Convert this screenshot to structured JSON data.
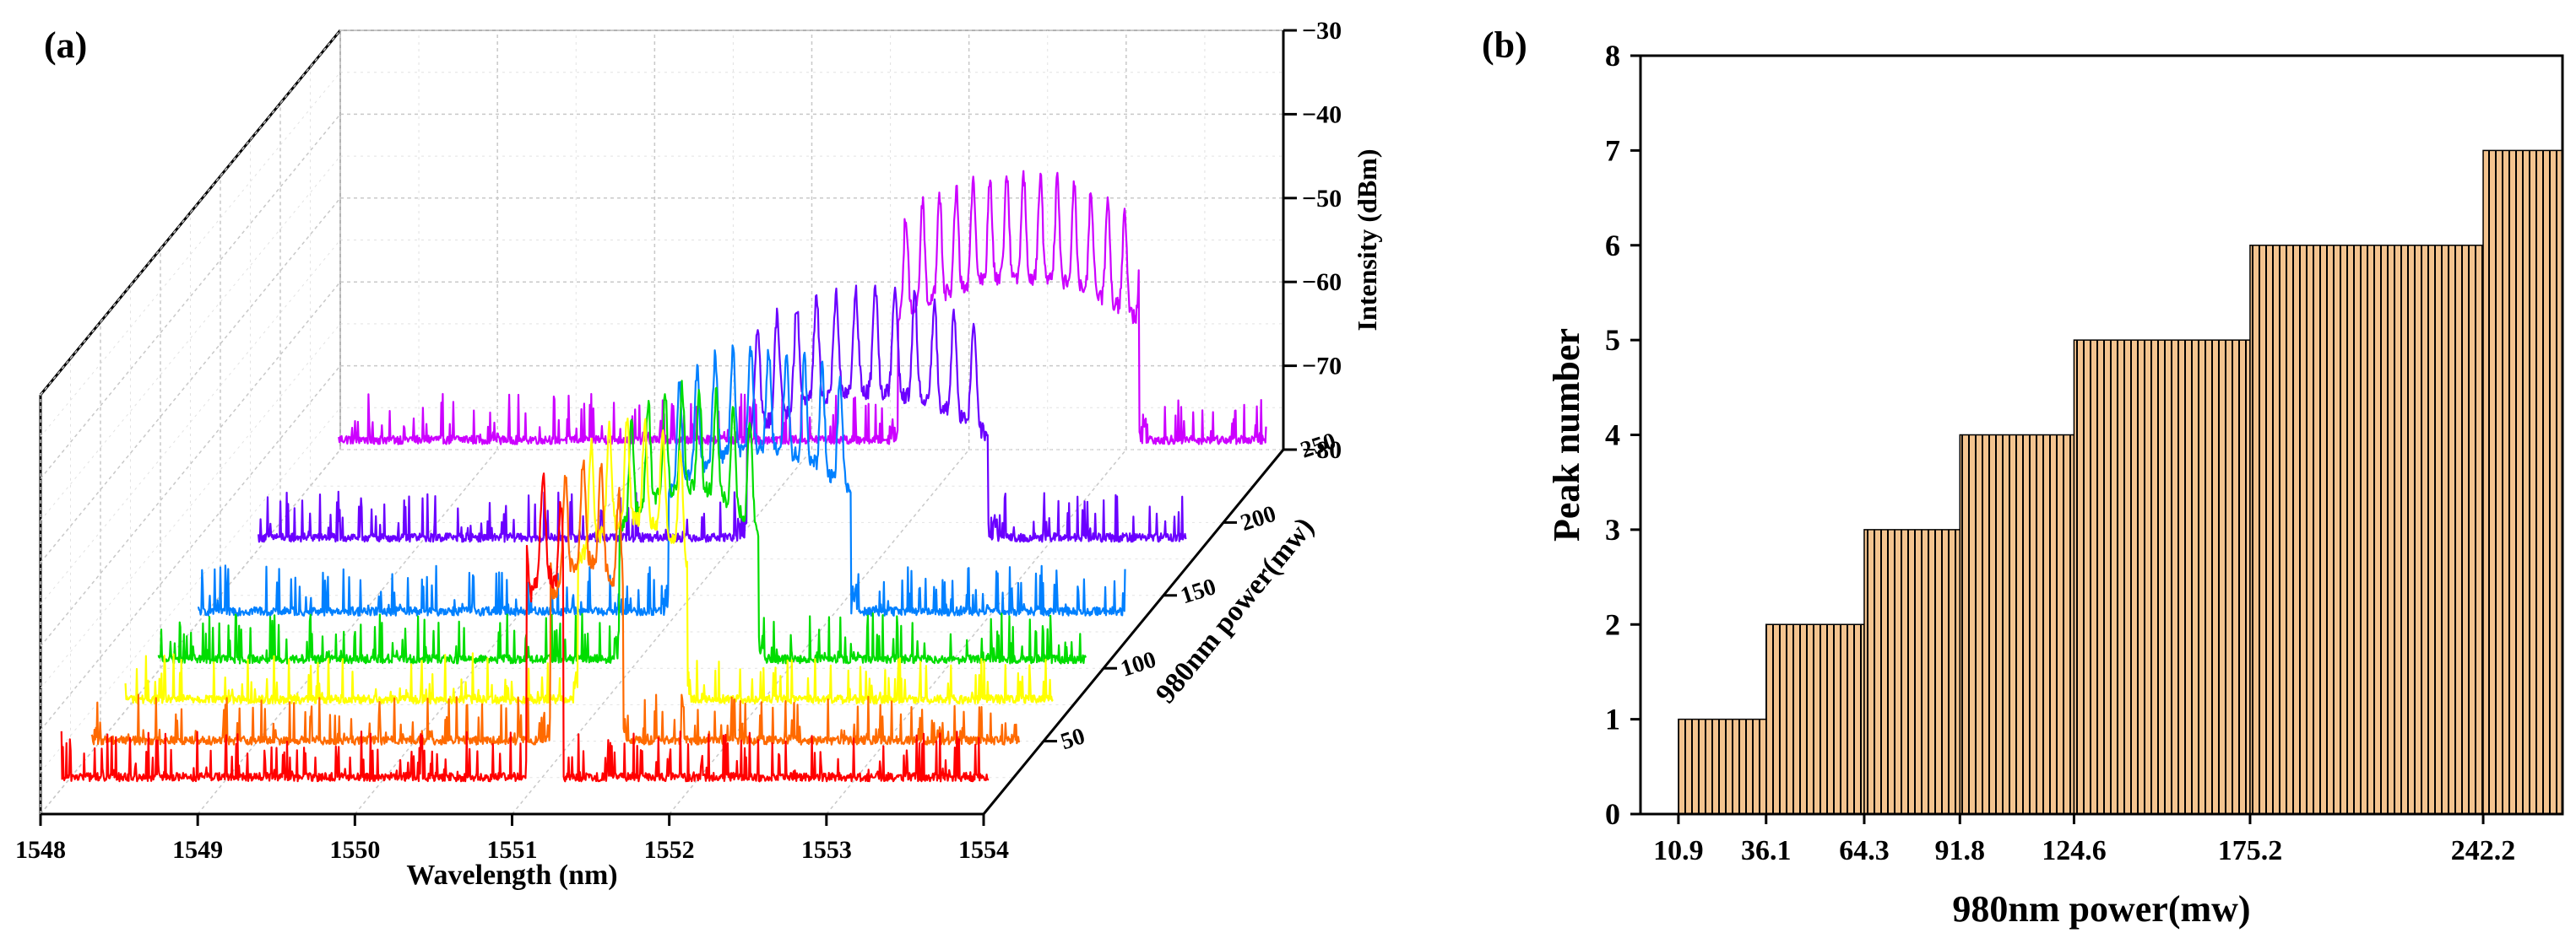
{
  "chart_data": [
    {
      "id": "a",
      "type": "line",
      "panel_label": "(a)",
      "title": "",
      "xlabel": "Wavelength (nm)",
      "ylabel": "980nm power(mw)",
      "zlabel": "Intensity (dBm)",
      "xlim": [
        1548,
        1554
      ],
      "ylim": [
        0,
        250
      ],
      "zlim": [
        -80,
        -30
      ],
      "x_ticks": [
        "1548",
        "1549",
        "1550",
        "1551",
        "1552",
        "1553",
        "1554"
      ],
      "y_ticks": [
        "50",
        "100",
        "150",
        "200",
        "250"
      ],
      "z_ticks": [
        "-30",
        "-40",
        "-50",
        "-60",
        "-70",
        "-80"
      ],
      "noise_floor": -78,
      "series": [
        {
          "name": "10.9 mW",
          "power": 10.9,
          "color": "#ff0000",
          "lobe_start": 1551.0,
          "lobe_end": 1551.25,
          "center": 1551.1,
          "peak": -40,
          "n_peaks": 1
        },
        {
          "name": "36.1 mW",
          "power": 36.1,
          "color": "#ff6a00",
          "lobe_start": 1550.95,
          "lobe_end": 1551.45,
          "center": 1551.2,
          "peak": -43,
          "n_peaks": 2
        },
        {
          "name": "64.3 mW",
          "power": 64.3,
          "color": "#ffff00",
          "lobe_start": 1550.9,
          "lobe_end": 1551.65,
          "center": 1551.25,
          "peak": -43,
          "n_peaks": 3
        },
        {
          "name": "91.8 mW",
          "power": 91.8,
          "color": "#00dd00",
          "lobe_start": 1550.95,
          "lobe_end": 1551.9,
          "center": 1551.4,
          "peak": -44,
          "n_peaks": 4
        },
        {
          "name": "124.6 mW",
          "power": 124.6,
          "color": "#0080ff",
          "lobe_start": 1551.0,
          "lobe_end": 1552.25,
          "center": 1551.6,
          "peak": -45,
          "n_peaks": 5
        },
        {
          "name": "175.2 mW",
          "power": 175.2,
          "color": "#6a00ff",
          "lobe_start": 1551.1,
          "lobe_end": 1552.75,
          "center": 1551.9,
          "peak": -47,
          "n_peaks": 6
        },
        {
          "name": "242.2 mW",
          "power": 242.2,
          "color": "#cc00ff",
          "lobe_start": 1551.55,
          "lobe_end": 1553.2,
          "center": 1552.35,
          "peak": -45,
          "n_peaks": 7
        }
      ]
    },
    {
      "id": "b",
      "type": "bar",
      "panel_label": "(b)",
      "title": "",
      "xlabel": "980nm power(mw)",
      "ylabel": "Peak number",
      "ylim": [
        0,
        8
      ],
      "y_ticks": [
        "0",
        "1",
        "2",
        "3",
        "4",
        "5",
        "6",
        "7",
        "8"
      ],
      "categories": [
        "10.9",
        "36.1",
        "64.3",
        "91.8",
        "124.6",
        "175.2",
        "242.2"
      ],
      "bar_starts": [
        10.9,
        36.1,
        64.3,
        91.8,
        124.6,
        175.2,
        242.2
      ],
      "bar_ends": [
        36.1,
        64.3,
        91.8,
        124.6,
        175.2,
        242.2,
        265
      ],
      "values": [
        1,
        2,
        3,
        4,
        5,
        6,
        7
      ],
      "bar_fill": "#f4c48f",
      "hatch_color": "#000000"
    }
  ]
}
